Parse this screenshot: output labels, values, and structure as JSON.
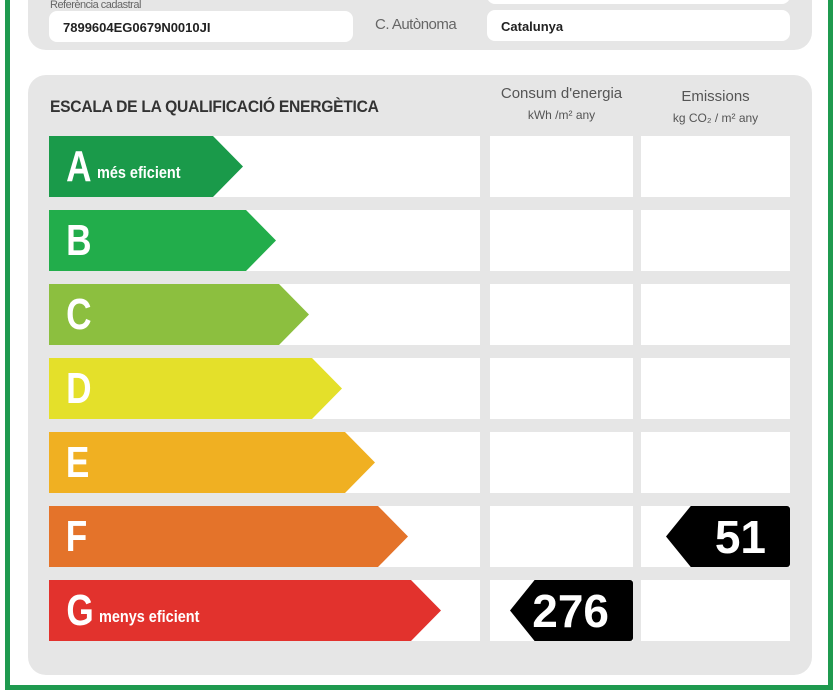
{
  "header": {
    "cadastral_label": "Referència cadastral",
    "cadastral_value": "7899604EG0679N0010JI",
    "region_label": "C. Autònoma",
    "region_value": "Catalunya"
  },
  "scale": {
    "title": "ESCALA DE LA QUALIFICACIÓ ENERGÈTICA",
    "consumption_header": "Consum d'energia",
    "consumption_unit": "kWh /m² any",
    "emissions_header": "Emissions",
    "emissions_unit": "kg CO₂ / m² any",
    "classes": [
      {
        "letter": "A",
        "sub": "més eficient",
        "color": "#1a9a4a"
      },
      {
        "letter": "B",
        "sub": "",
        "color": "#22ad4b"
      },
      {
        "letter": "C",
        "sub": "",
        "color": "#8cbf3f"
      },
      {
        "letter": "D",
        "sub": "",
        "color": "#e4e02a"
      },
      {
        "letter": "E",
        "sub": "",
        "color": "#f0b022"
      },
      {
        "letter": "F",
        "sub": "",
        "color": "#e4732a"
      },
      {
        "letter": "G",
        "sub": "menys eficient",
        "color": "#e2322d"
      }
    ],
    "consumption_rating": {
      "class": "G",
      "value": "276"
    },
    "emissions_rating": {
      "class": "F",
      "value": "51"
    }
  }
}
